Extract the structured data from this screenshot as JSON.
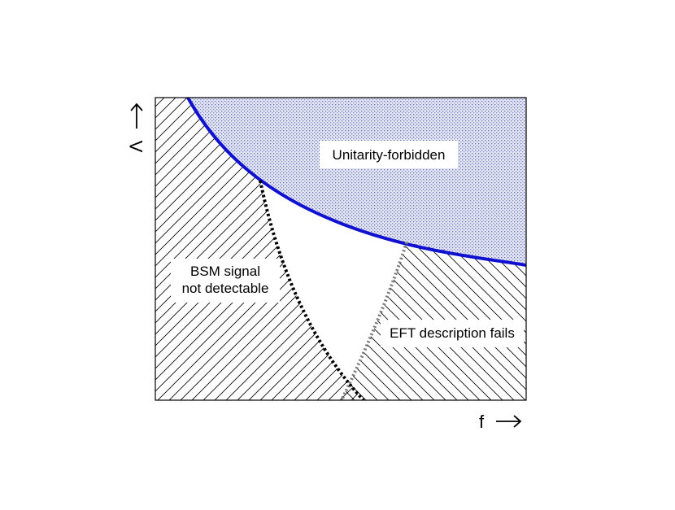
{
  "regions": {
    "unitarity": "Unitarity-forbidden",
    "bsm": [
      "BSM signal",
      "not detectable"
    ],
    "eft": "EFT description fails"
  },
  "axes": {
    "x_label": "f",
    "y_label": "Λ"
  }
}
